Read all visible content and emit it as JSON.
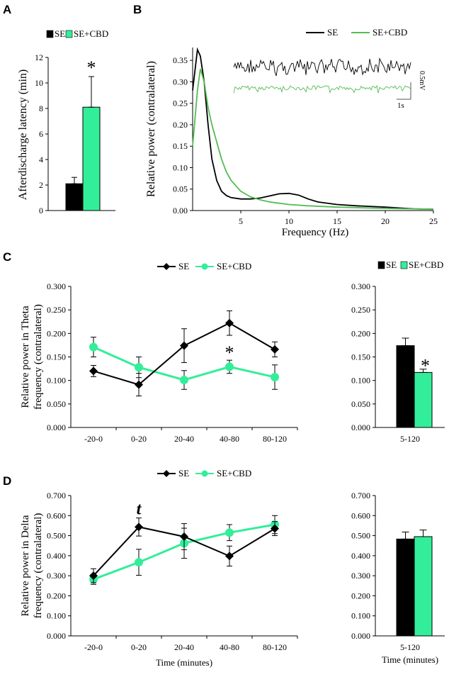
{
  "colors": {
    "se": "#000000",
    "cbd_bar": "#33ee99",
    "cbd_line": "#33ee99",
    "cbd_spectrum": "#55bb55"
  },
  "panel_letters": {
    "a": "A",
    "b": "B",
    "c": "C",
    "d": "D"
  },
  "chart_data": [
    {
      "id": "A",
      "type": "bar",
      "legend": [
        "SE",
        "SE+CBD"
      ],
      "categories": [
        "SE",
        "SE+CBD"
      ],
      "values": [
        2.1,
        8.1
      ],
      "errors": [
        0.5,
        2.4
      ],
      "ylabel": "Afterdischarge latency (min)",
      "ylim": [
        0,
        12
      ],
      "yticks": [
        "0",
        "2",
        "4",
        "6",
        "8",
        "10",
        "12"
      ],
      "annotation": "*"
    },
    {
      "id": "B",
      "type": "line",
      "legend": [
        "SE",
        "SE+CBD"
      ],
      "xlabel": "Frequency (Hz)",
      "ylabel": "Relative power (contralateral)",
      "xlim": [
        0,
        25
      ],
      "ylim": [
        0,
        0.38
      ],
      "xticks": [
        "5",
        "10",
        "15",
        "20",
        "25"
      ],
      "yticks": [
        "0.00",
        "0.05",
        "0.10",
        "0.15",
        "0.20",
        "0.25",
        "0.30",
        "0.35"
      ],
      "series": [
        {
          "name": "SE",
          "x": [
            0,
            0.5,
            0.8,
            1.2,
            1.6,
            2.0,
            2.5,
            3.0,
            3.5,
            4.0,
            5.0,
            6.0,
            7.0,
            8.0,
            9.0,
            10.0,
            11.0,
            12.0,
            13.0,
            15.0,
            17.0,
            20.0,
            23.0,
            25.0
          ],
          "y": [
            0.28,
            0.375,
            0.36,
            0.3,
            0.2,
            0.12,
            0.07,
            0.045,
            0.035,
            0.03,
            0.027,
            0.027,
            0.029,
            0.034,
            0.039,
            0.04,
            0.036,
            0.027,
            0.02,
            0.014,
            0.011,
            0.008,
            0.004,
            0.003
          ]
        },
        {
          "name": "SE+CBD",
          "x": [
            0,
            0.5,
            0.8,
            1.2,
            1.6,
            2.0,
            2.5,
            3.0,
            3.5,
            4.0,
            5.0,
            6.0,
            7.0,
            8.0,
            9.0,
            10.0,
            12.0,
            15.0,
            20.0,
            25.0
          ],
          "y": [
            0.15,
            0.28,
            0.33,
            0.3,
            0.24,
            0.2,
            0.16,
            0.12,
            0.09,
            0.07,
            0.045,
            0.032,
            0.025,
            0.02,
            0.017,
            0.014,
            0.011,
            0.008,
            0.005,
            0.003
          ]
        }
      ],
      "inset_scale": {
        "voltage": "0.5mV",
        "time": "1s"
      }
    },
    {
      "id": "C-line",
      "type": "line",
      "legend": [
        "SE",
        "SE+CBD"
      ],
      "categories": [
        "-20-0",
        "0-20",
        "20-40",
        "40-80",
        "80-120"
      ],
      "series": [
        {
          "name": "SE",
          "values": [
            0.12,
            0.091,
            0.174,
            0.222,
            0.166
          ],
          "errors": [
            0.012,
            0.024,
            0.036,
            0.026,
            0.016
          ]
        },
        {
          "name": "SE+CBD",
          "values": [
            0.171,
            0.128,
            0.101,
            0.129,
            0.107
          ],
          "errors": [
            0.021,
            0.022,
            0.02,
            0.014,
            0.026
          ]
        }
      ],
      "ylabel": "Relative power in Theta frequency (contralateral)",
      "ylim": [
        0,
        0.3
      ],
      "yticks": [
        "0.000",
        "0.050",
        "0.100",
        "0.150",
        "0.200",
        "0.250",
        "0.300"
      ],
      "annotation": "*",
      "annotation_at": "40-80"
    },
    {
      "id": "C-bar",
      "type": "bar",
      "legend": [
        "SE",
        "SE+CBD"
      ],
      "categories": [
        "5-120"
      ],
      "series": [
        {
          "name": "SE",
          "values": [
            0.174
          ],
          "errors": [
            0.016
          ]
        },
        {
          "name": "SE+CBD",
          "values": [
            0.117
          ],
          "errors": [
            0.007
          ]
        }
      ],
      "ylim": [
        0,
        0.3
      ],
      "yticks": [
        "0.000",
        "0.050",
        "0.100",
        "0.150",
        "0.200",
        "0.250",
        "0.300"
      ],
      "annotation": "*"
    },
    {
      "id": "D-line",
      "type": "line",
      "legend": [
        "SE",
        "SE+CBD"
      ],
      "categories": [
        "-20-0",
        "0-20",
        "20-40",
        "40-80",
        "80-120"
      ],
      "series": [
        {
          "name": "SE",
          "values": [
            0.3,
            0.543,
            0.495,
            0.398,
            0.535
          ],
          "errors": [
            0.035,
            0.045,
            0.065,
            0.05,
            0.035
          ]
        },
        {
          "name": "SE+CBD",
          "values": [
            0.282,
            0.367,
            0.462,
            0.515,
            0.555
          ],
          "errors": [
            0.025,
            0.065,
            0.075,
            0.04,
            0.045
          ]
        }
      ],
      "xlabel": "Time (minutes)",
      "ylabel": "Relative power in Delta frequency (contralateral)",
      "ylim": [
        0,
        0.7
      ],
      "yticks": [
        "0.000",
        "0.100",
        "0.200",
        "0.300",
        "0.400",
        "0.500",
        "0.600",
        "0.700"
      ],
      "annotation": "t",
      "annotation_at": "0-20"
    },
    {
      "id": "D-bar",
      "type": "bar",
      "categories": [
        "5-120"
      ],
      "series": [
        {
          "name": "SE",
          "values": [
            0.483
          ],
          "errors": [
            0.035
          ]
        },
        {
          "name": "SE+CBD",
          "values": [
            0.495
          ],
          "errors": [
            0.033
          ]
        }
      ],
      "xlabel": "Time (minutes)",
      "ylim": [
        0,
        0.7
      ],
      "yticks": [
        "0.000",
        "0.100",
        "0.200",
        "0.300",
        "0.400",
        "0.500",
        "0.600",
        "0.700"
      ]
    }
  ]
}
